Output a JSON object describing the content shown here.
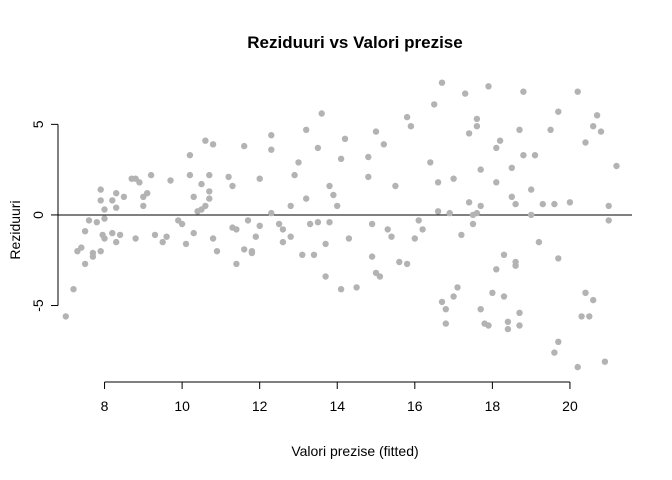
{
  "chart_data": {
    "type": "scatter",
    "title": "Reziduuri vs Valori prezise",
    "xlabel": "Valori prezise (fitted)",
    "ylabel": "Reziduuri",
    "xlim": [
      6.8,
      21.6
    ],
    "ylim": [
      -9.0,
      8.0
    ],
    "x_ticks": [
      8,
      10,
      12,
      14,
      16,
      18,
      20
    ],
    "y_ticks": [
      -5,
      0,
      5
    ],
    "hline": 0,
    "point_color": "#b3b3b3",
    "points": [
      [
        7.0,
        -5.6
      ],
      [
        7.2,
        -4.1
      ],
      [
        7.3,
        -2.0
      ],
      [
        7.4,
        -1.8
      ],
      [
        7.5,
        -2.7
      ],
      [
        7.5,
        -0.9
      ],
      [
        7.6,
        -0.3
      ],
      [
        7.7,
        -2.3
      ],
      [
        7.7,
        -2.1
      ],
      [
        7.8,
        -0.4
      ],
      [
        7.9,
        1.4
      ],
      [
        7.9,
        0.8
      ],
      [
        7.9,
        -2.0
      ],
      [
        7.95,
        -1.1
      ],
      [
        8.0,
        -1.3
      ],
      [
        8.0,
        -0.2
      ],
      [
        8.0,
        0.3
      ],
      [
        8.2,
        0.8
      ],
      [
        8.2,
        -1.0
      ],
      [
        8.3,
        1.2
      ],
      [
        8.3,
        0.4
      ],
      [
        8.3,
        -1.5
      ],
      [
        8.4,
        -1.1
      ],
      [
        8.5,
        1.0
      ],
      [
        8.7,
        2.0
      ],
      [
        8.8,
        2.0
      ],
      [
        8.8,
        -1.3
      ],
      [
        8.9,
        1.8
      ],
      [
        9.0,
        0.5
      ],
      [
        9.0,
        1.0
      ],
      [
        9.1,
        1.2
      ],
      [
        9.2,
        2.2
      ],
      [
        9.3,
        -1.1
      ],
      [
        9.5,
        -1.5
      ],
      [
        9.6,
        -1.2
      ],
      [
        9.7,
        1.9
      ],
      [
        9.9,
        -0.3
      ],
      [
        10.0,
        -0.5
      ],
      [
        10.1,
        -1.6
      ],
      [
        10.2,
        2.2
      ],
      [
        10.2,
        3.3
      ],
      [
        10.3,
        1.0
      ],
      [
        10.3,
        -1.0
      ],
      [
        10.4,
        0.2
      ],
      [
        10.5,
        1.7
      ],
      [
        10.5,
        0.3
      ],
      [
        10.6,
        4.1
      ],
      [
        10.6,
        0.5
      ],
      [
        10.7,
        2.2
      ],
      [
        10.7,
        1.3
      ],
      [
        10.7,
        0.9
      ],
      [
        10.8,
        3.9
      ],
      [
        10.8,
        -1.3
      ],
      [
        10.9,
        -2.0
      ],
      [
        11.2,
        2.1
      ],
      [
        11.3,
        1.6
      ],
      [
        11.3,
        -0.7
      ],
      [
        11.4,
        -0.8
      ],
      [
        11.4,
        -2.7
      ],
      [
        11.6,
        3.8
      ],
      [
        11.6,
        -1.9
      ],
      [
        11.7,
        -0.3
      ],
      [
        11.8,
        -2.1
      ],
      [
        11.8,
        -2.0
      ],
      [
        11.9,
        -1.2
      ],
      [
        12.0,
        2.0
      ],
      [
        12.0,
        -0.6
      ],
      [
        12.3,
        4.4
      ],
      [
        12.3,
        3.6
      ],
      [
        12.3,
        0.1
      ],
      [
        12.5,
        -0.5
      ],
      [
        12.6,
        -1.5
      ],
      [
        12.6,
        -0.8
      ],
      [
        12.8,
        0.5
      ],
      [
        12.8,
        -1.2
      ],
      [
        12.9,
        2.2
      ],
      [
        13.0,
        2.9
      ],
      [
        13.1,
        -2.2
      ],
      [
        13.2,
        0.9
      ],
      [
        13.2,
        4.7
      ],
      [
        13.3,
        -0.5
      ],
      [
        13.4,
        -2.2
      ],
      [
        13.5,
        3.7
      ],
      [
        13.5,
        -0.4
      ],
      [
        13.6,
        5.6
      ],
      [
        13.7,
        -3.4
      ],
      [
        13.7,
        -1.6
      ],
      [
        13.8,
        1.6
      ],
      [
        13.8,
        -0.4
      ],
      [
        13.9,
        1.1
      ],
      [
        14.0,
        0.5
      ],
      [
        14.1,
        3.1
      ],
      [
        14.1,
        -4.1
      ],
      [
        14.2,
        4.2
      ],
      [
        14.3,
        -1.3
      ],
      [
        14.5,
        -4.0
      ],
      [
        14.8,
        2.1
      ],
      [
        14.8,
        3.2
      ],
      [
        14.9,
        -0.5
      ],
      [
        14.9,
        -2.3
      ],
      [
        15.0,
        4.6
      ],
      [
        15.0,
        -3.2
      ],
      [
        15.1,
        -3.4
      ],
      [
        15.2,
        3.9
      ],
      [
        15.3,
        -0.8
      ],
      [
        15.4,
        -1.2
      ],
      [
        15.5,
        1.6
      ],
      [
        15.6,
        -2.6
      ],
      [
        15.8,
        -2.7
      ],
      [
        15.8,
        5.4
      ],
      [
        15.9,
        4.9
      ],
      [
        16.0,
        -1.3
      ],
      [
        16.1,
        -0.3
      ],
      [
        16.2,
        -0.8
      ],
      [
        16.4,
        2.9
      ],
      [
        16.5,
        6.1
      ],
      [
        16.6,
        0.2
      ],
      [
        16.6,
        1.8
      ],
      [
        16.7,
        7.3
      ],
      [
        16.7,
        -4.8
      ],
      [
        16.8,
        -5.2
      ],
      [
        16.8,
        -6.0
      ],
      [
        16.9,
        0.1
      ],
      [
        17.0,
        2.0
      ],
      [
        17.0,
        -4.5
      ],
      [
        17.1,
        -4.0
      ],
      [
        17.2,
        -1.1
      ],
      [
        17.3,
        6.7
      ],
      [
        17.4,
        4.5
      ],
      [
        17.4,
        0.7
      ],
      [
        17.5,
        0.0
      ],
      [
        17.5,
        -0.5
      ],
      [
        17.6,
        5.3
      ],
      [
        17.6,
        4.9
      ],
      [
        17.6,
        0.1
      ],
      [
        17.7,
        2.5
      ],
      [
        17.7,
        -5.2
      ],
      [
        17.7,
        0.5
      ],
      [
        17.8,
        -6.0
      ],
      [
        17.9,
        7.1
      ],
      [
        17.9,
        -6.1
      ],
      [
        18.0,
        -4.3
      ],
      [
        18.1,
        1.8
      ],
      [
        18.1,
        3.7
      ],
      [
        18.1,
        -3.0
      ],
      [
        18.2,
        4.1
      ],
      [
        18.3,
        -2.2
      ],
      [
        18.3,
        -4.5
      ],
      [
        18.4,
        -6.3
      ],
      [
        18.4,
        -5.9
      ],
      [
        18.5,
        1.0
      ],
      [
        18.5,
        2.6
      ],
      [
        18.6,
        0.6
      ],
      [
        18.6,
        -2.6
      ],
      [
        18.6,
        -2.8
      ],
      [
        18.7,
        4.7
      ],
      [
        18.7,
        -6.1
      ],
      [
        18.7,
        -5.4
      ],
      [
        18.8,
        3.3
      ],
      [
        18.8,
        6.8
      ],
      [
        19.0,
        1.4
      ],
      [
        19.0,
        0.0
      ],
      [
        19.1,
        3.3
      ],
      [
        19.2,
        -1.5
      ],
      [
        19.3,
        0.6
      ],
      [
        19.5,
        4.7
      ],
      [
        19.6,
        0.6
      ],
      [
        19.6,
        -7.6
      ],
      [
        19.7,
        5.7
      ],
      [
        19.7,
        -7.0
      ],
      [
        19.7,
        -2.4
      ],
      [
        20.0,
        0.7
      ],
      [
        20.2,
        6.8
      ],
      [
        20.2,
        -8.4
      ],
      [
        20.3,
        -5.6
      ],
      [
        20.4,
        -4.3
      ],
      [
        20.4,
        4.0
      ],
      [
        20.5,
        -5.6
      ],
      [
        20.6,
        -4.7
      ],
      [
        20.6,
        4.9
      ],
      [
        20.7,
        5.5
      ],
      [
        20.8,
        4.6
      ],
      [
        20.9,
        -8.1
      ],
      [
        21.0,
        0.5
      ],
      [
        21.0,
        -0.3
      ],
      [
        21.2,
        2.7
      ]
    ]
  }
}
